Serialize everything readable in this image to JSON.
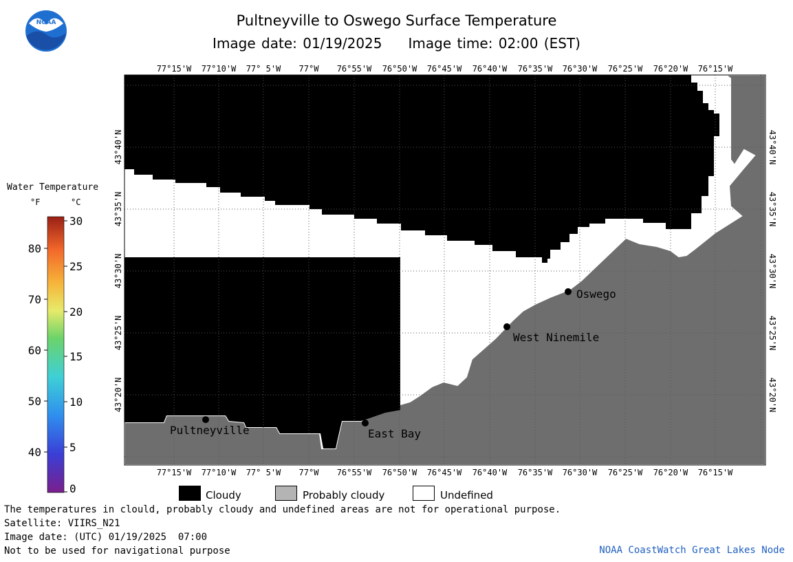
{
  "header": {
    "title": "Pultneyville to Oswego Surface Temperature",
    "image_date": "Image date: 01/19/2025",
    "image_time": "Image time: 02:00 (EST)"
  },
  "logo": {
    "text": "NOAA",
    "icon": "noaa-logo-icon",
    "color": "#1f6fd1"
  },
  "map": {
    "longitude_labels": [
      "77°15'W",
      "77°10'W",
      "77° 5'W",
      "77°W",
      "76°55'W",
      "76°50'W",
      "76°45'W",
      "76°40'W",
      "76°35'W",
      "76°30'W",
      "76°25'W",
      "76°20'W",
      "76°15'W"
    ],
    "latitude_labels": [
      "43°40'N",
      "43°35'N",
      "43°30'N",
      "43°25'N",
      "43°20'N"
    ],
    "places": [
      "Oswego",
      "West Ninemile",
      "Pultneyville",
      "East Bay"
    ],
    "colors": {
      "cloudy": "#000000",
      "land": "#6e6e6e",
      "undefined": "#ffffff",
      "probably_cloudy": "#b4b4b4"
    }
  },
  "colorbar": {
    "title": "Water Temperature",
    "unit_f": "°F",
    "unit_c": "°C",
    "f_ticks": [
      "80",
      "70",
      "60",
      "50",
      "40"
    ],
    "c_ticks": [
      "30",
      "25",
      "20",
      "15",
      "10",
      "5",
      "0"
    ]
  },
  "legend": {
    "cloudy": "Cloudy",
    "probably_cloudy": "Probably cloudy",
    "undefined": "Undefined"
  },
  "notes": {
    "disclaimer": "The temperatures in clould, probably cloudy and undefined areas are not for operational purpose.",
    "satellite": "Satellite: VIIRS_N21",
    "utc_date": "Image date: (UTC) 01/19/2025  07:00",
    "nav": "Not to be used for navigational purpose"
  },
  "credit": "NOAA CoastWatch Great Lakes Node"
}
